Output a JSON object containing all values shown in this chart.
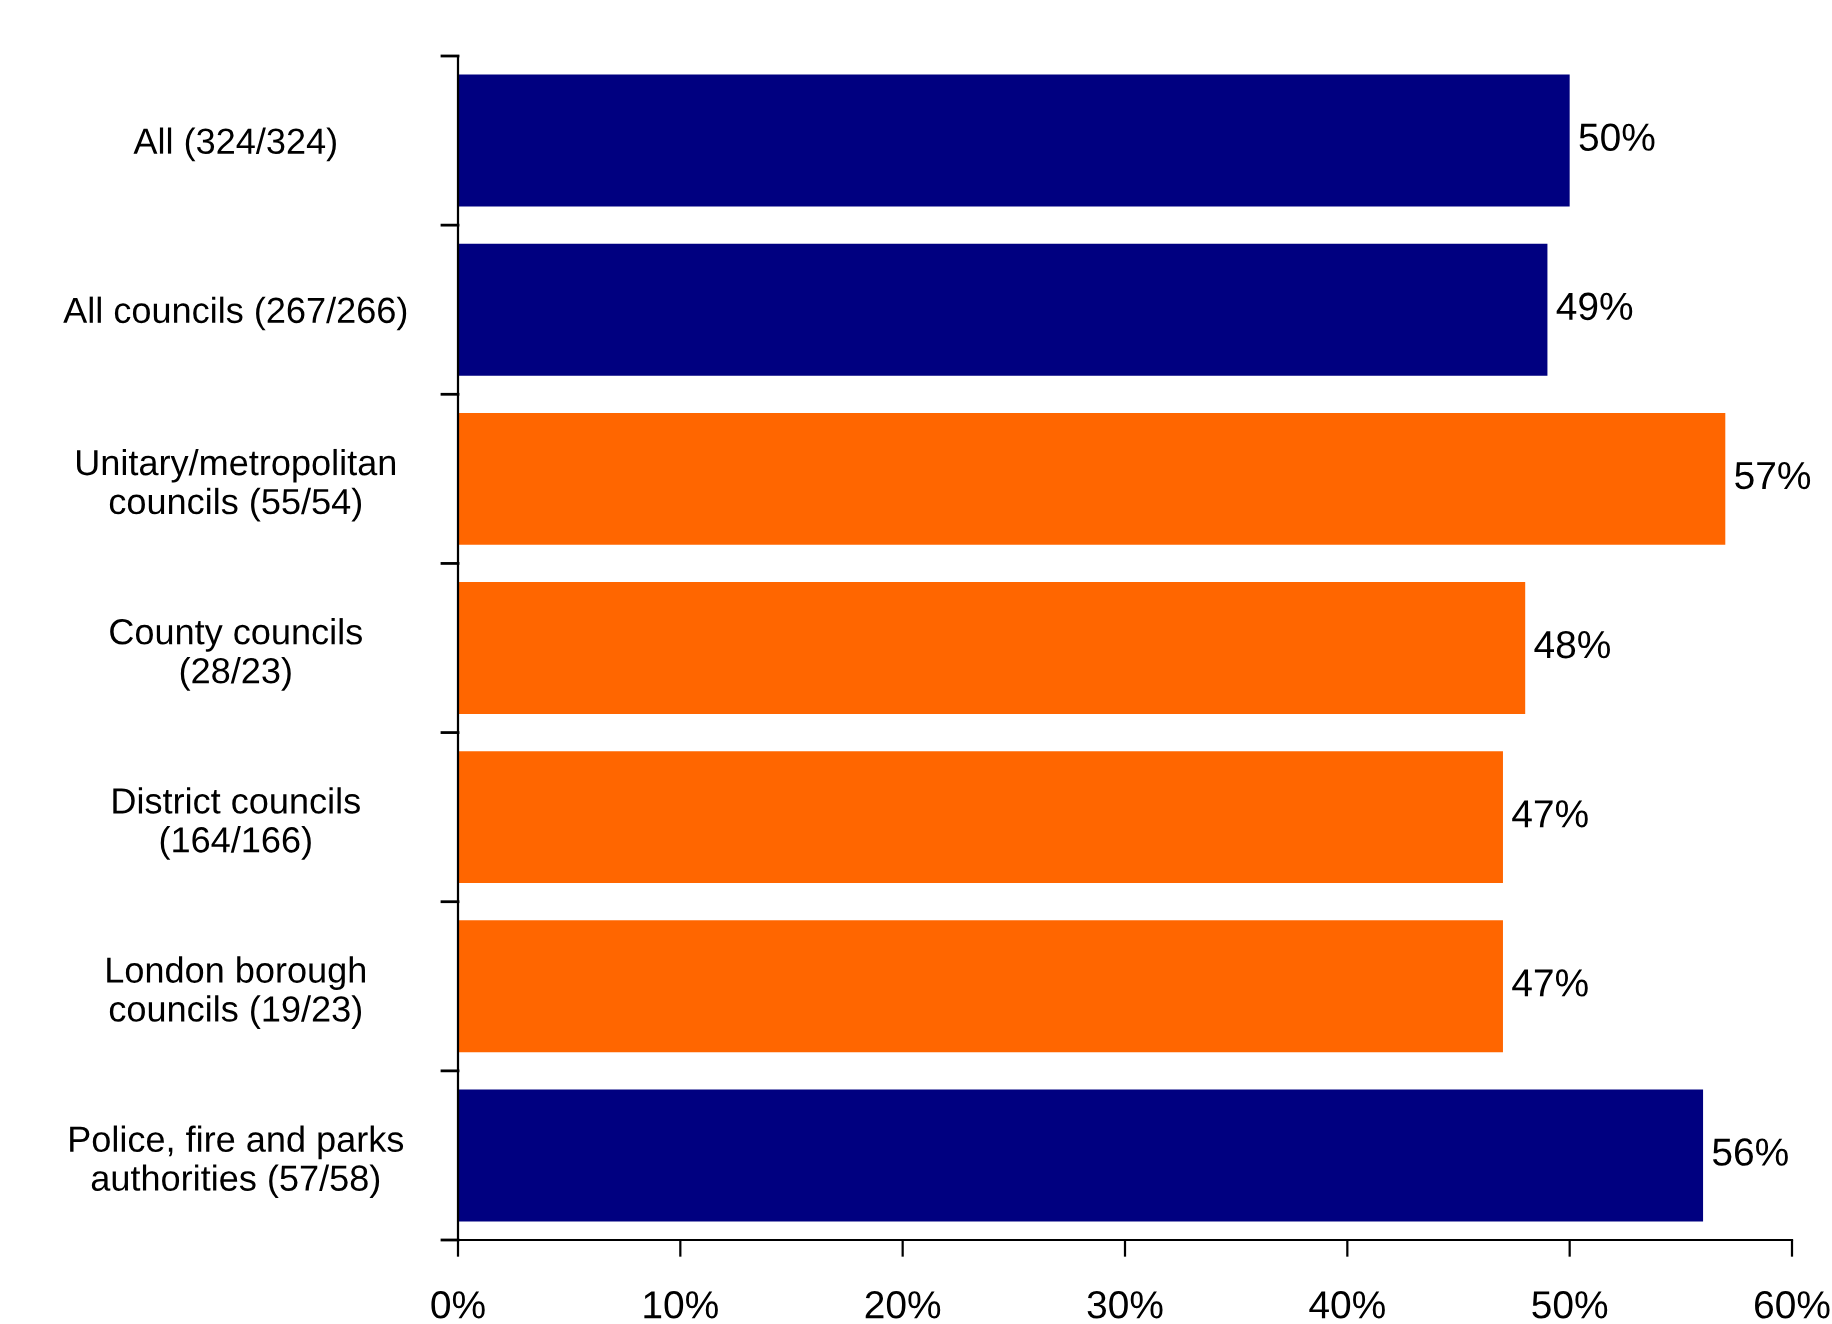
{
  "chart_data": {
    "type": "bar",
    "orientation": "horizontal",
    "categories": [
      "All (324/324)",
      "All councils (267/266)",
      "Unitary/metropolitan\ncouncils (55/54)",
      "County councils\n(28/23)",
      "District councils\n(164/166)",
      "London borough\ncouncils (19/23)",
      "Police, fire and parks\nauthorities (57/58)"
    ],
    "values": [
      50,
      49,
      57,
      48,
      47,
      47,
      56
    ],
    "colors": [
      "#000080",
      "#000080",
      "#ff6600",
      "#ff6600",
      "#ff6600",
      "#ff6600",
      "#000080"
    ],
    "value_labels": [
      "50%",
      "49%",
      "57%",
      "48%",
      "47%",
      "47%",
      "56%"
    ],
    "xlim": [
      0,
      60
    ],
    "xticks": [
      {
        "value": 0,
        "label": "0%"
      },
      {
        "value": 10,
        "label": "10%"
      },
      {
        "value": 20,
        "label": "20%"
      },
      {
        "value": 30,
        "label": "30%"
      },
      {
        "value": 40,
        "label": "40%"
      },
      {
        "value": 50,
        "label": "50%"
      },
      {
        "value": 60,
        "label": "60%"
      }
    ],
    "grid": false
  }
}
